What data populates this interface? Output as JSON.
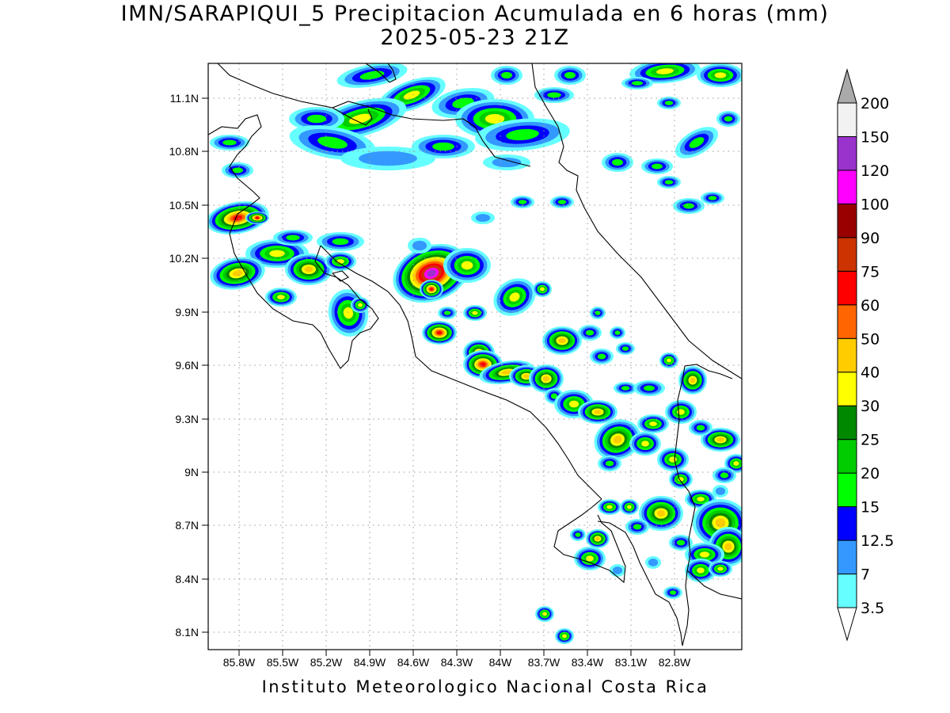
{
  "title": {
    "line1": "IMN/SARAPIQUI_5 Precipitacion Acumulada en 6 horas (mm)",
    "line2": "2025-05-23 21Z"
  },
  "footer": "Instituto Meteorologico Nacional Costa Rica",
  "map": {
    "lat_ticks": [
      "11.1N",
      "10.8N",
      "10.5N",
      "10.2N",
      "9.9N",
      "9.6N",
      "9.3N",
      "9N",
      "8.7N",
      "8.4N",
      "8.1N"
    ],
    "lon_ticks": [
      "85.8W",
      "85.5W",
      "85.2W",
      "84.9W",
      "84.6W",
      "84.3W",
      "84W",
      "83.7W",
      "83.4W",
      "83.1W",
      "82.8W"
    ],
    "grid": true
  },
  "colorbar": {
    "labels": [
      "3.5",
      "7",
      "12.5",
      "15",
      "20",
      "25",
      "30",
      "40",
      "50",
      "60",
      "75",
      "90",
      "100",
      "120",
      "150",
      "200"
    ],
    "colors": [
      "#66ffff",
      "#3399ff",
      "#0000ff",
      "#00ff00",
      "#00cc00",
      "#008800",
      "#ffff00",
      "#ffcc00",
      "#ff6600",
      "#ff0000",
      "#cc3300",
      "#990000",
      "#ff00ff",
      "#9933cc",
      "#f2f2f2",
      "#aaaaaa"
    ]
  }
}
